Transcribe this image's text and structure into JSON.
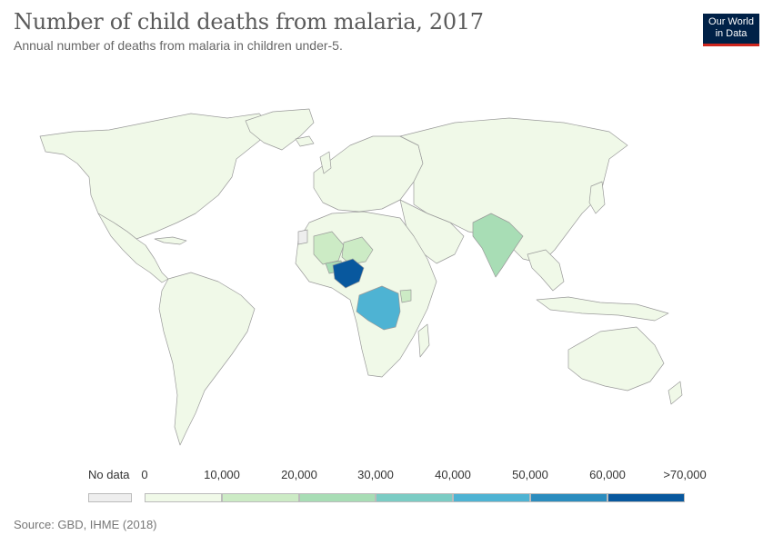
{
  "header": {
    "title": "Number of child deaths from malaria, 2017",
    "subtitle": "Annual number of deaths from malaria in children under-5."
  },
  "logo": {
    "line1": "Our World",
    "line2": "in Data",
    "bg_color": "#002147",
    "accent_color": "#ce261e"
  },
  "legend": {
    "no_data_label": "No data",
    "no_data_color": "#eeeeee",
    "bins": [
      {
        "label": "0",
        "color": "#f0f9e8"
      },
      {
        "label": "10,000",
        "color": "#ccebc5"
      },
      {
        "label": "20,000",
        "color": "#a8ddb5"
      },
      {
        "label": "30,000",
        "color": "#7bccc4"
      },
      {
        "label": "40,000",
        "color": "#4eb3d3"
      },
      {
        "label": "50,000",
        "color": "#2b8cbe"
      },
      {
        "label": "60,000",
        "color": "#08589e"
      }
    ],
    "max_label": ">70,000"
  },
  "map": {
    "background_color": "#eef6e6",
    "border_color": "#9a9a9a",
    "highlighted": [
      {
        "region": "Nigeria",
        "bin": 6
      },
      {
        "region": "Democratic Republic of Congo",
        "bin": 4
      },
      {
        "region": "India",
        "bin": 2
      },
      {
        "region": "Mali",
        "bin": 1
      },
      {
        "region": "Niger",
        "bin": 1
      },
      {
        "region": "Burkina Faso",
        "bin": 2
      },
      {
        "region": "Uganda",
        "bin": 1
      }
    ]
  },
  "footer": {
    "source": "Source: GBD, IHME (2018)"
  }
}
